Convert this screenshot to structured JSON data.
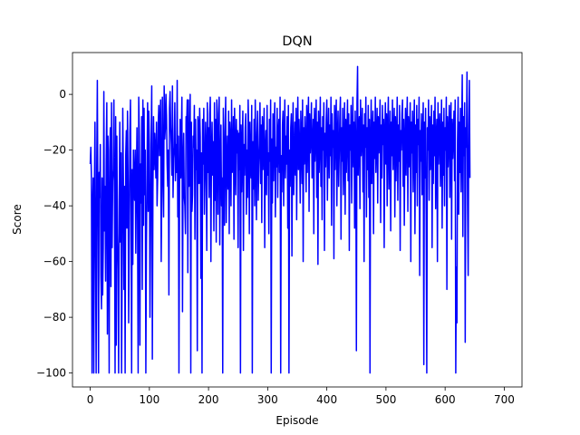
{
  "chart_data": {
    "type": "line",
    "title": "DQN",
    "xlabel": "Episode",
    "ylabel": "Score",
    "xlim": [
      -30,
      730
    ],
    "ylim": [
      -105,
      15
    ],
    "xticks": [
      0,
      100,
      200,
      300,
      400,
      500,
      600,
      700
    ],
    "yticks": [
      -100,
      -80,
      -60,
      -40,
      -20,
      0
    ],
    "grid": false,
    "series": [
      {
        "color": "#0000ff",
        "x_start": 0,
        "x_step": 1,
        "values": [
          -25,
          -19,
          -30,
          -100,
          -40,
          -30,
          -100,
          -35,
          -10,
          -60,
          -100,
          -26,
          5,
          -45,
          -100,
          -28,
          -37,
          -18,
          -65,
          -77,
          -30,
          -72,
          -55,
          1,
          -49,
          -33,
          -67,
          -24,
          -3,
          -86,
          -15,
          -45,
          -100,
          -20,
          -12,
          -69,
          -3,
          -55,
          -31,
          -27,
          -2,
          -40,
          -100,
          -8,
          -90,
          -15,
          -50,
          -63,
          -100,
          -38,
          -10,
          -53,
          -21,
          -100,
          -60,
          -5,
          -30,
          -70,
          -33,
          -100,
          -22,
          -13,
          -48,
          -6,
          -32,
          -82,
          -50,
          -14,
          -2,
          -41,
          -100,
          -27,
          -61,
          -20,
          -30,
          -38,
          -20,
          -57,
          -33,
          -12,
          -45,
          -100,
          -1,
          -15,
          -90,
          -25,
          -39,
          -8,
          -70,
          -2,
          -47,
          -5,
          -36,
          -20,
          -100,
          -54,
          -29,
          -3,
          -42,
          -6,
          -18,
          -80,
          -50,
          -17,
          3,
          -95,
          -35,
          -8,
          -27,
          -14,
          -21,
          -30,
          -10,
          -40,
          -30,
          -10,
          -4,
          -22,
          -11,
          -2,
          -60,
          -33,
          -1,
          -27,
          -44,
          3,
          -16,
          -12,
          0,
          -8,
          -25,
          -33,
          -20,
          -72,
          -5,
          1,
          -12,
          -18,
          -29,
          3,
          -37,
          -23,
          -19,
          -3,
          -31,
          -18,
          -28,
          5,
          -44,
          -15,
          -100,
          -34,
          -9,
          -30,
          -17,
          -1,
          -78,
          -25,
          -14,
          -37,
          -40,
          -50,
          -8,
          -11,
          -2,
          -64,
          -2,
          -33,
          -25,
          0,
          -100,
          -10,
          -42,
          -36,
          -15,
          -19,
          -4,
          -52,
          -9,
          -27,
          -20,
          -92,
          -8,
          -11,
          -32,
          -5,
          -15,
          -66,
          -21,
          -100,
          -9,
          -25,
          -5,
          -43,
          -30,
          -10,
          -20,
          -56,
          -3,
          -28,
          -12,
          -37,
          -7,
          -1,
          -60,
          -21,
          -10,
          -29,
          -17,
          -49,
          -3,
          -38,
          -9,
          -53,
          -2,
          -18,
          -43,
          -7,
          -1,
          -54,
          -25,
          -11,
          -40,
          -30,
          -100,
          -5,
          -22,
          -47,
          -13,
          -1,
          -46,
          -25,
          -15,
          -34,
          -6,
          -50,
          -10,
          -16,
          -40,
          -2,
          -28,
          -24,
          -8,
          -52,
          -5,
          -19,
          -36,
          -9,
          -21,
          -13,
          -55,
          -14,
          -27,
          -4,
          -100,
          -11,
          -35,
          -19,
          -6,
          -56,
          -18,
          -29,
          -12,
          -7,
          -43,
          -20,
          -37,
          -2,
          -15,
          -50,
          -10,
          -25,
          -30,
          -4,
          -100,
          -17,
          -34,
          -9,
          -40,
          -2,
          -22,
          -45,
          -14,
          -6,
          -38,
          -26,
          -18,
          -3,
          -32,
          -11,
          -46,
          -8,
          -27,
          -15,
          -5,
          -55,
          -20,
          -13,
          -36,
          -4,
          -29,
          -21,
          -50,
          -9,
          -24,
          -2,
          -100,
          -16,
          -39,
          -7,
          -31,
          -12,
          -3,
          -44,
          -19,
          -26,
          -5,
          -37,
          -14,
          -9,
          -28,
          -1,
          -100,
          -22,
          -35,
          -11,
          -6,
          -40,
          -18,
          -2,
          -30,
          -15,
          -25,
          -8,
          -48,
          -4,
          -100,
          -20,
          -33,
          -12,
          -7,
          -58,
          -17,
          -3,
          -36,
          -23,
          -10,
          -29,
          -5,
          -45,
          -14,
          -1,
          -27,
          -9,
          -20,
          -39,
          -6,
          -16,
          -32,
          -2,
          -60,
          -12,
          -25,
          -8,
          -18,
          -35,
          -4,
          -28,
          -11,
          -1,
          -42,
          -7,
          -21,
          -15,
          -3,
          -30,
          -19,
          -9,
          -50,
          -5,
          -24,
          -13,
          -2,
          -37,
          -10,
          -61,
          -6,
          -28,
          -16,
          -1,
          -33,
          -12,
          -45,
          -8,
          -20,
          -3,
          -56,
          -14,
          -26,
          -9,
          -2,
          -38,
          -17,
          -5,
          -30,
          -11,
          -22,
          -1,
          -47,
          -7,
          -19,
          -13,
          -59,
          -4,
          -27,
          -10,
          -2,
          -40,
          -15,
          -6,
          -33,
          -21,
          -8,
          -1,
          -52,
          -12,
          -24,
          -5,
          -36,
          -18,
          -3,
          -43,
          -9,
          -28,
          -14,
          -2,
          -31,
          -7,
          -56,
          -11,
          -20,
          -4,
          -39,
          -16,
          -1,
          -26,
          -10,
          -48,
          -6,
          -18,
          -92,
          -3,
          10,
          -29,
          -13,
          -8,
          -41,
          -2,
          -22,
          -15,
          -5,
          -35,
          -11,
          -60,
          -7,
          -19,
          -1,
          -44,
          -12,
          -27,
          -4,
          -37,
          -9,
          -100,
          -17,
          -2,
          -32,
          -14,
          -6,
          -50,
          -10,
          -23,
          -1,
          -28,
          -16,
          -5,
          -39,
          -8,
          -21,
          -13,
          -2,
          -46,
          -11,
          -30,
          -4,
          -18,
          -9,
          -55,
          -15,
          -3,
          -25,
          -7,
          -40,
          -12,
          -1,
          -34,
          -19,
          -6,
          -49,
          -10,
          -22,
          -2,
          -27,
          -14,
          -5,
          -44,
          -8,
          -31,
          -16,
          -1,
          -38,
          -11,
          -24,
          -4,
          -56,
          -13,
          -20,
          -7,
          -2,
          -33,
          -9,
          -47,
          -17,
          -5,
          -29,
          -12,
          -1,
          -42,
          -8,
          -26,
          -15,
          -3,
          -60,
          -10,
          -21,
          -6,
          -35,
          -14,
          -2,
          -50,
          -11,
          -28,
          -4,
          -40,
          -9,
          -18,
          -1,
          -65,
          -13,
          -24,
          -7,
          -36,
          -16,
          -3,
          -97,
          -10,
          -30,
          -5,
          -45,
          -100,
          -12,
          -20,
          -2,
          -38,
          -8,
          -27,
          -14,
          -4,
          -55,
          -11,
          -32,
          -6,
          -22,
          -1,
          -41,
          -15,
          -9,
          -60,
          -3,
          -25,
          -13,
          -7,
          -33,
          -18,
          -2,
          -48,
          -10,
          -29,
          -5,
          -40,
          -12,
          -20,
          -1,
          -70,
          -8,
          -26,
          -15,
          -4,
          -37,
          -11,
          -3,
          -52,
          -9,
          -23,
          -14,
          -6,
          -31,
          -2,
          -100,
          -62,
          -82,
          -17,
          -1,
          -43,
          -10,
          -28,
          -5,
          -35,
          -13,
          7,
          -51,
          -8,
          -22,
          -3,
          -89,
          -12,
          -19,
          8,
          -40,
          -65,
          -11,
          5,
          -30
        ]
      }
    ]
  }
}
